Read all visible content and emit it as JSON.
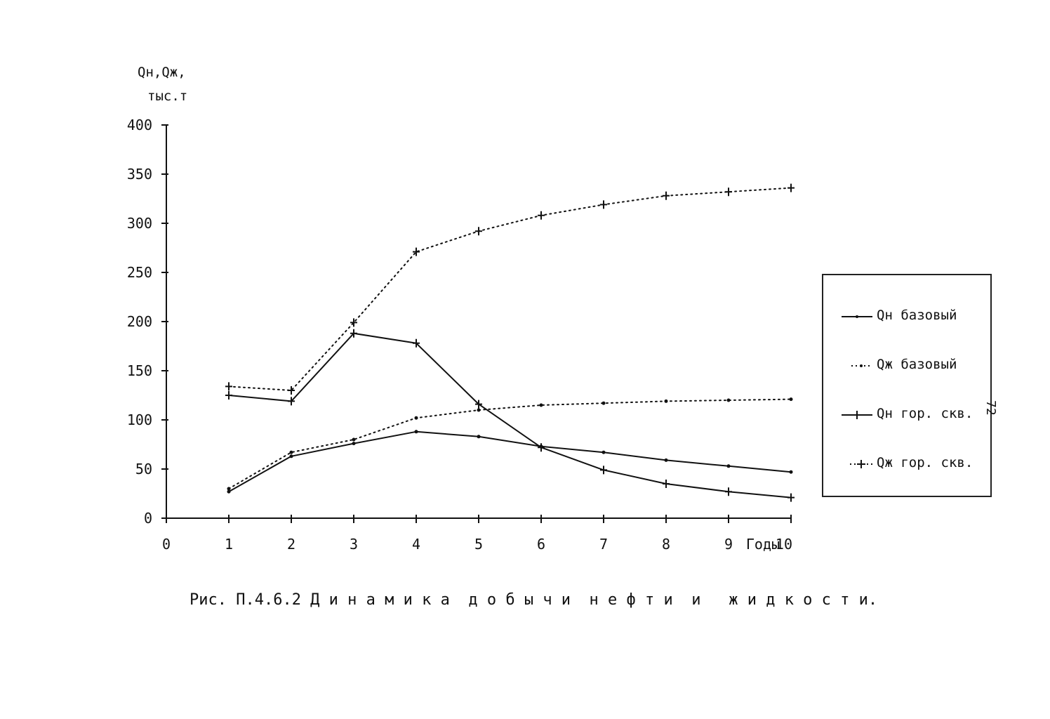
{
  "chart_data": {
    "type": "line",
    "ylabel_line1": "Qн,Qж,",
    "ylabel_line2": "тыс.т",
    "xlabel": "Годы",
    "ylim": [
      0,
      400
    ],
    "xlim": [
      0,
      10
    ],
    "yticks": [
      0,
      50,
      100,
      150,
      200,
      250,
      300,
      350,
      400
    ],
    "ytick_labels": [
      "0",
      "50",
      "100",
      "150",
      "200",
      "250",
      "300",
      "350",
      "400"
    ],
    "xticks": [
      0,
      1,
      2,
      3,
      4,
      5,
      6,
      7,
      8,
      9,
      10
    ],
    "xtick_labels": [
      "0",
      "1",
      "2",
      "3",
      "4",
      "5",
      "6",
      "7",
      "8",
      "9",
      "10"
    ],
    "grid": false,
    "legend_position": "right",
    "x": [
      1,
      2,
      3,
      4,
      5,
      6,
      7,
      8,
      9,
      10
    ],
    "series": [
      {
        "name": "Qн базовый",
        "style": "solid",
        "marker": "dot",
        "values": [
          27,
          63,
          76,
          88,
          83,
          73,
          67,
          59,
          53,
          47
        ]
      },
      {
        "name": "Qж базовый",
        "style": "dotted",
        "marker": "dot",
        "values": [
          30,
          67,
          80,
          102,
          110,
          115,
          117,
          119,
          120,
          121
        ]
      },
      {
        "name": "Qн гор. скв.",
        "style": "solid",
        "marker": "plus",
        "values": [
          125,
          119,
          188,
          178,
          116,
          72,
          49,
          35,
          27,
          21
        ]
      },
      {
        "name": "Qж гор. скв.",
        "style": "dotted",
        "marker": "plus",
        "values": [
          134,
          130,
          199,
          271,
          292,
          308,
          319,
          328,
          332,
          336
        ]
      }
    ],
    "caption": "Рис. П.4.6.2 Д и н а м и к а  д о б ы ч и  н е ф т и  и   ж и д к о с т и."
  },
  "page_number": "72",
  "colors": {
    "ink": "#111111",
    "background": "#ffffff"
  }
}
